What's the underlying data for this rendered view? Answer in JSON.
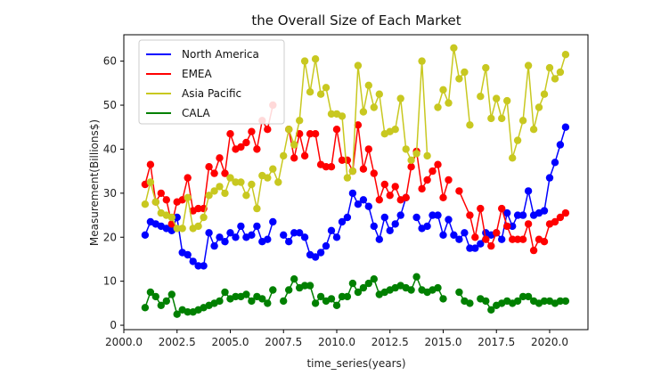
{
  "chart_data": {
    "type": "line",
    "title": "the Overall Size of Each Market",
    "xlabel": "time_series(years)",
    "ylabel": "Measurement(Billions$)",
    "xlim": [
      2000.0,
      2021.8
    ],
    "ylim": [
      -1,
      66
    ],
    "xticks": [
      2000.0,
      2002.5,
      2005.0,
      2007.5,
      2010.0,
      2012.5,
      2015.0,
      2017.5,
      2020.0
    ],
    "xtick_labels": [
      "2000.0",
      "2002.5",
      "2005.0",
      "2007.5",
      "2010.0",
      "2012.5",
      "2015.0",
      "2017.5",
      "2020.0"
    ],
    "yticks": [
      0,
      10,
      20,
      30,
      40,
      50,
      60
    ],
    "ytick_labels": [
      "0",
      "10",
      "20",
      "30",
      "40",
      "50",
      "60"
    ],
    "grid": false,
    "legend_position": "top-left",
    "markers": true,
    "series": [
      {
        "name": "North America",
        "color": "#0000ff",
        "segments": [
          {
            "x": [
              2001.0,
              2001.25,
              2001.5,
              2001.75,
              2002.0,
              2002.25,
              2002.5,
              2002.75,
              2003.0,
              2003.25,
              2003.5,
              2003.75,
              2004.0,
              2004.25,
              2004.5,
              2004.75,
              2005.0,
              2005.25,
              2005.5,
              2005.75,
              2006.0,
              2006.25,
              2006.5,
              2006.75,
              2007.0
            ],
            "y": [
              20.5,
              23.5,
              23.0,
              22.5,
              22.0,
              21.5,
              24.5,
              16.5,
              16.0,
              14.5,
              13.5,
              13.5,
              21.0,
              18.0,
              20.0,
              19.0,
              21.0,
              20.0,
              22.5,
              20.0,
              20.5,
              22.5,
              19.0,
              19.5,
              23.5
            ]
          },
          {
            "x": [
              2007.5,
              2007.75,
              2008.0,
              2008.25,
              2008.5,
              2008.75,
              2009.0,
              2009.25,
              2009.5,
              2009.75,
              2010.0,
              2010.25,
              2010.5,
              2010.75,
              2011.0,
              2011.25,
              2011.5,
              2011.75,
              2012.0,
              2012.25,
              2012.5,
              2012.75,
              2013.0,
              2013.25
            ],
            "y": [
              20.5,
              19.0,
              21.0,
              21.0,
              20.0,
              16.0,
              15.5,
              16.5,
              18.0,
              21.5,
              20.0,
              23.5,
              24.5,
              30.0,
              27.5,
              28.5,
              27.0,
              22.5,
              19.5,
              24.5,
              21.5,
              23.0,
              25.0,
              29.0
            ]
          },
          {
            "x": [
              2013.75,
              2014.0,
              2014.25,
              2014.5,
              2014.75,
              2015.0,
              2015.25,
              2015.5,
              2015.75,
              2016.0,
              2016.25,
              2016.5,
              2016.75,
              2017.0,
              2017.25,
              2017.5,
              2017.75,
              2018.0,
              2018.25,
              2018.5,
              2018.75,
              2019.0,
              2019.25,
              2019.5,
              2019.75,
              2020.0,
              2020.25,
              2020.5,
              2020.75
            ],
            "y": [
              24.5,
              22.0,
              22.5,
              25.0,
              25.0,
              20.5,
              24.0,
              20.5,
              19.5,
              21.0,
              17.5,
              17.5,
              18.5,
              21.0,
              20.5,
              21.0,
              19.5,
              25.5,
              22.5,
              25.0,
              25.0,
              30.5,
              25.0,
              25.5,
              26.0,
              33.5,
              37.0,
              41.0,
              45.0
            ]
          }
        ]
      },
      {
        "name": "EMEA",
        "color": "#ff0000",
        "segments": [
          {
            "x": [
              2001.0,
              2001.25,
              2001.5,
              2001.75,
              2002.0,
              2002.25,
              2002.5,
              2002.75,
              2003.0,
              2003.25,
              2003.5,
              2003.75,
              2004.0,
              2004.25,
              2004.5,
              2004.75,
              2005.0,
              2005.25,
              2005.5,
              2005.75,
              2006.0,
              2006.25,
              2006.5,
              2006.75,
              2007.0
            ],
            "y": [
              32.0,
              36.5,
              28.0,
              30.0,
              28.5,
              23.0,
              28.0,
              28.5,
              33.5,
              26.0,
              26.5,
              26.5,
              36.0,
              34.5,
              38.0,
              34.5,
              43.5,
              40.0,
              40.5,
              41.5,
              44.0,
              40.0,
              46.5,
              44.5,
              50.0
            ]
          },
          {
            "x": [
              2007.75,
              2008.0,
              2008.25,
              2008.5,
              2008.75,
              2009.0,
              2009.25,
              2009.5,
              2009.75,
              2010.0,
              2010.25,
              2010.5,
              2010.75,
              2011.0,
              2011.25,
              2011.5,
              2011.75,
              2012.0,
              2012.25,
              2012.5,
              2012.75,
              2013.0,
              2013.25,
              2013.5,
              2013.75,
              2014.0,
              2014.25,
              2014.5,
              2014.75,
              2015.0,
              2015.25
            ],
            "y": [
              44.5,
              38.0,
              43.5,
              38.5,
              43.5,
              43.5,
              36.5,
              36.0,
              36.0,
              44.5,
              37.5,
              37.5,
              35.0,
              45.5,
              35.5,
              40.0,
              34.5,
              28.5,
              32.0,
              29.5,
              31.5,
              28.5,
              29.0,
              36.0,
              39.5,
              31.0,
              33.0,
              35.0,
              36.5,
              29.0,
              33.0
            ]
          },
          {
            "x": [
              2015.75,
              2016.25,
              2016.5,
              2016.75,
              2017.0,
              2017.25,
              2017.5,
              2017.75,
              2018.0,
              2018.25,
              2018.5,
              2018.75,
              2019.0,
              2019.25,
              2019.5,
              2019.75,
              2020.0,
              2020.25,
              2020.5,
              2020.75
            ],
            "y": [
              30.5,
              25.0,
              20.0,
              26.5,
              19.5,
              18.0,
              21.0,
              26.5,
              22.5,
              19.5,
              19.5,
              19.5,
              23.0,
              17.0,
              19.5,
              19.0,
              23.0,
              23.5,
              24.5,
              25.5
            ]
          }
        ]
      },
      {
        "name": "Asia Pacific",
        "color": "#c8c820",
        "segments": [
          {
            "x": [
              2001.0,
              2001.25,
              2001.5,
              2001.75,
              2002.0,
              2002.25,
              2002.5,
              2002.75,
              2003.0,
              2003.25,
              2003.5,
              2003.75,
              2004.0,
              2004.25,
              2004.5,
              2004.75,
              2005.0,
              2005.25,
              2005.5,
              2005.75,
              2006.0,
              2006.25,
              2006.5,
              2006.75,
              2007.0,
              2007.25,
              2007.5,
              2007.75,
              2008.0,
              2008.25,
              2008.5,
              2008.75,
              2009.0,
              2009.25,
              2009.5,
              2009.75,
              2010.0,
              2010.25,
              2010.5,
              2010.75,
              2011.0,
              2011.25,
              2011.5,
              2011.75,
              2012.0,
              2012.25,
              2012.5,
              2012.75,
              2013.0,
              2013.25,
              2013.5,
              2013.75,
              2014.0,
              2014.25
            ],
            "y": [
              27.5,
              32.5,
              28.0,
              25.5,
              25.0,
              24.5,
              22.0,
              22.0,
              29.0,
              22.0,
              22.5,
              24.5,
              29.5,
              30.5,
              31.5,
              30.0,
              33.5,
              32.5,
              32.5,
              29.5,
              32.0,
              26.5,
              34.0,
              33.5,
              35.5,
              32.5,
              38.5,
              44.5,
              41.0,
              46.5,
              60.0,
              53.0,
              60.5,
              52.5,
              54.0,
              48.0,
              48.0,
              47.5,
              33.5,
              35.0,
              59.0,
              48.5,
              54.5,
              49.5,
              52.5,
              43.5,
              44.0,
              44.5,
              51.5,
              40.0,
              37.5,
              39.0,
              60.0,
              38.5
            ]
          },
          {
            "x": [
              2014.75,
              2015.0,
              2015.25,
              2015.5,
              2015.75,
              2016.0,
              2016.25
            ],
            "y": [
              49.5,
              53.5,
              50.5,
              63.0,
              56.0,
              57.5,
              45.5
            ]
          },
          {
            "x": [
              2016.75,
              2017.0,
              2017.25,
              2017.5,
              2017.75,
              2018.0,
              2018.25,
              2018.5,
              2018.75,
              2019.0,
              2019.25,
              2019.5,
              2019.75,
              2020.0,
              2020.25,
              2020.5,
              2020.75
            ],
            "y": [
              52.0,
              58.5,
              47.0,
              51.5,
              47.0,
              51.0,
              38.0,
              42.0,
              46.5,
              59.0,
              44.5,
              49.5,
              52.5,
              58.5,
              56.0,
              57.5,
              61.5
            ]
          }
        ]
      },
      {
        "name": "CALA",
        "color": "#008000",
        "segments": [
          {
            "x": [
              2001.0,
              2001.25,
              2001.5,
              2001.75,
              2002.0,
              2002.25,
              2002.5,
              2002.75,
              2003.0,
              2003.25,
              2003.5,
              2003.75,
              2004.0,
              2004.25,
              2004.5,
              2004.75,
              2005.0,
              2005.25,
              2005.5,
              2005.75,
              2006.0,
              2006.25,
              2006.5,
              2006.75,
              2007.0
            ],
            "y": [
              4.0,
              7.5,
              6.5,
              4.5,
              5.5,
              7.0,
              2.5,
              3.5,
              3.0,
              3.0,
              3.5,
              4.0,
              4.5,
              5.0,
              5.5,
              7.5,
              6.0,
              6.5,
              6.5,
              7.0,
              5.5,
              6.5,
              6.0,
              5.0,
              8.0
            ]
          },
          {
            "x": [
              2007.5,
              2007.75,
              2008.0,
              2008.25,
              2008.5,
              2008.75,
              2009.0,
              2009.25,
              2009.5,
              2009.75,
              2010.0,
              2010.25,
              2010.5,
              2010.75,
              2011.0,
              2011.25,
              2011.5,
              2011.75,
              2012.0,
              2012.25,
              2012.5,
              2012.75,
              2013.0,
              2013.25,
              2013.5,
              2013.75,
              2014.0,
              2014.25,
              2014.5,
              2014.75,
              2015.0
            ],
            "y": [
              5.5,
              8.0,
              10.5,
              8.5,
              9.0,
              9.0,
              5.0,
              6.5,
              5.5,
              6.0,
              4.5,
              6.5,
              6.5,
              9.5,
              7.5,
              8.5,
              9.5,
              10.5,
              7.0,
              7.5,
              8.0,
              8.5,
              9.0,
              8.5,
              8.0,
              11.0,
              8.0,
              7.5,
              8.0,
              8.5,
              6.0
            ]
          },
          {
            "x": [
              2015.75,
              2016.0,
              2016.25
            ],
            "y": [
              7.5,
              5.5,
              5.0
            ]
          },
          {
            "x": [
              2016.75,
              2017.0,
              2017.25,
              2017.5,
              2017.75,
              2018.0,
              2018.25,
              2018.5,
              2018.75,
              2019.0,
              2019.25,
              2019.5,
              2019.75,
              2020.0,
              2020.25,
              2020.5,
              2020.75
            ],
            "y": [
              6.0,
              5.5,
              3.5,
              4.5,
              5.0,
              5.5,
              5.0,
              5.5,
              6.5,
              6.5,
              5.5,
              5.0,
              5.5,
              5.5,
              5.0,
              5.5,
              5.5
            ]
          }
        ]
      }
    ]
  }
}
